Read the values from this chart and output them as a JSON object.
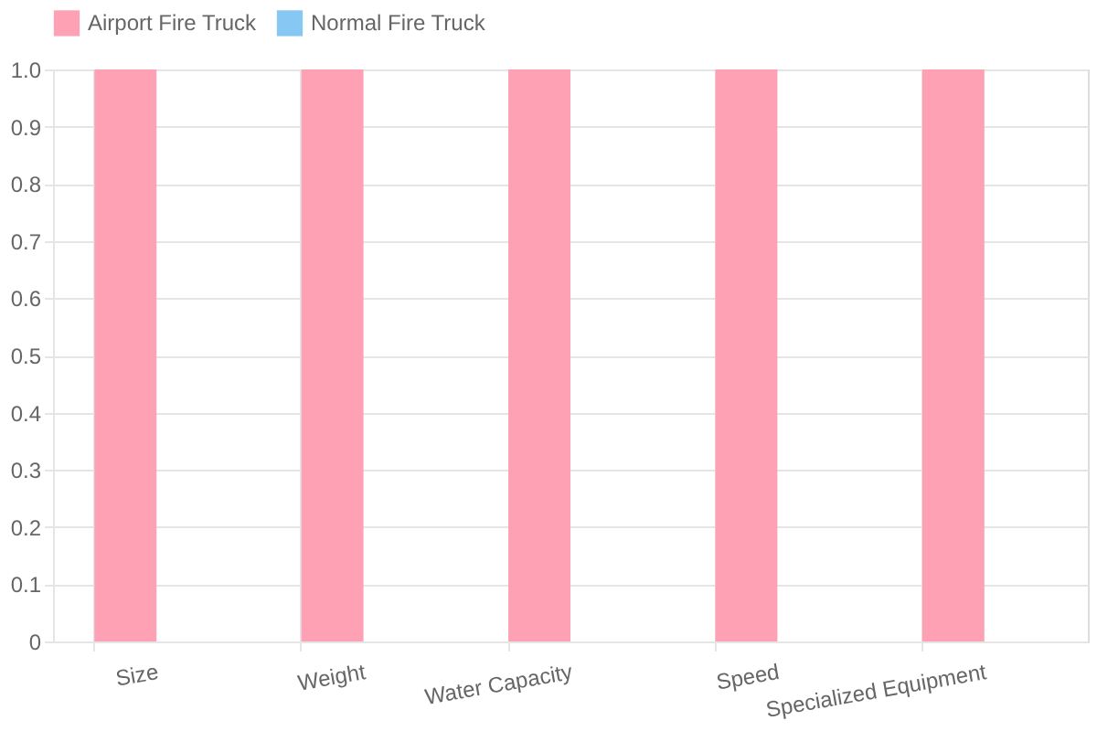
{
  "chart_data": {
    "type": "bar",
    "categories": [
      "Size",
      "Weight",
      "Water Capacity",
      "Speed",
      "Specialized Equipment"
    ],
    "series": [
      {
        "name": "Airport Fire Truck",
        "color": "#ffa1b5",
        "values": [
          1,
          1,
          1,
          1,
          1
        ]
      },
      {
        "name": "Normal Fire Truck",
        "color": "#86c7f3",
        "values": [
          0,
          0,
          0,
          0,
          0
        ]
      }
    ],
    "ylim": [
      0,
      1
    ],
    "yticks": [
      {
        "value": 0,
        "label": "0"
      },
      0.1,
      0.2,
      0.3,
      0.4,
      0.5,
      0.6,
      0.7,
      0.8,
      0.9,
      {
        "value": 1,
        "label": "1.0"
      }
    ],
    "grid": true,
    "legend": "top"
  }
}
